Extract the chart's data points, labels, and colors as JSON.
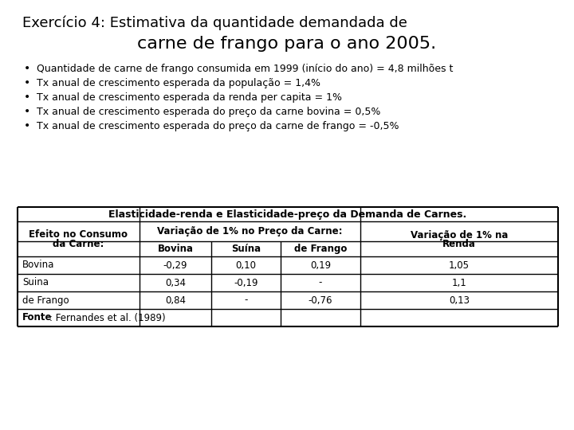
{
  "title_line1": "Exercício 4: Estimativa da quantidade demandada de",
  "title_line2": "carne de frango para o ano 2005.",
  "bullets": [
    "Quantidade de carne de frango consumida em 1999 (início do ano) = 4,8 milhões t",
    "Tx anual de crescimento esperada da população = 1,4%",
    "Tx anual de crescimento esperada da renda per capita = 1%",
    "Tx anual de crescimento esperada do preço da carne bovina = 0,5%",
    "Tx anual de crescimento esperada do preço da carne de frango = -0,5%"
  ],
  "table_title": "Elasticidade-renda e Elasticidade-preço da Demanda de Carnes.",
  "col_header2_sub": [
    "Bovina",
    "Suína",
    "de Frango"
  ],
  "rows": [
    {
      "label": "Bovina",
      "bovina": "-0,29",
      "suina": "0,10",
      "frango": "0,19",
      "renda": "1,05"
    },
    {
      "label": "Suina",
      "bovina": "0,34",
      "suina": "-0,19",
      "frango": "-",
      "renda": "1,1"
    },
    {
      "label": "de Frango",
      "bovina": "0,84",
      "suina": "-",
      "frango": "-0,76",
      "renda": "0,13"
    }
  ],
  "fonte_bold": "Fonte",
  "fonte_rest": ": Fernandes et al. (1989)",
  "bg_color": "#ffffff",
  "text_color": "#000000",
  "title1_fontsize": 13,
  "title2_fontsize": 16,
  "bullet_fontsize": 9,
  "table_fontsize": 8.5
}
